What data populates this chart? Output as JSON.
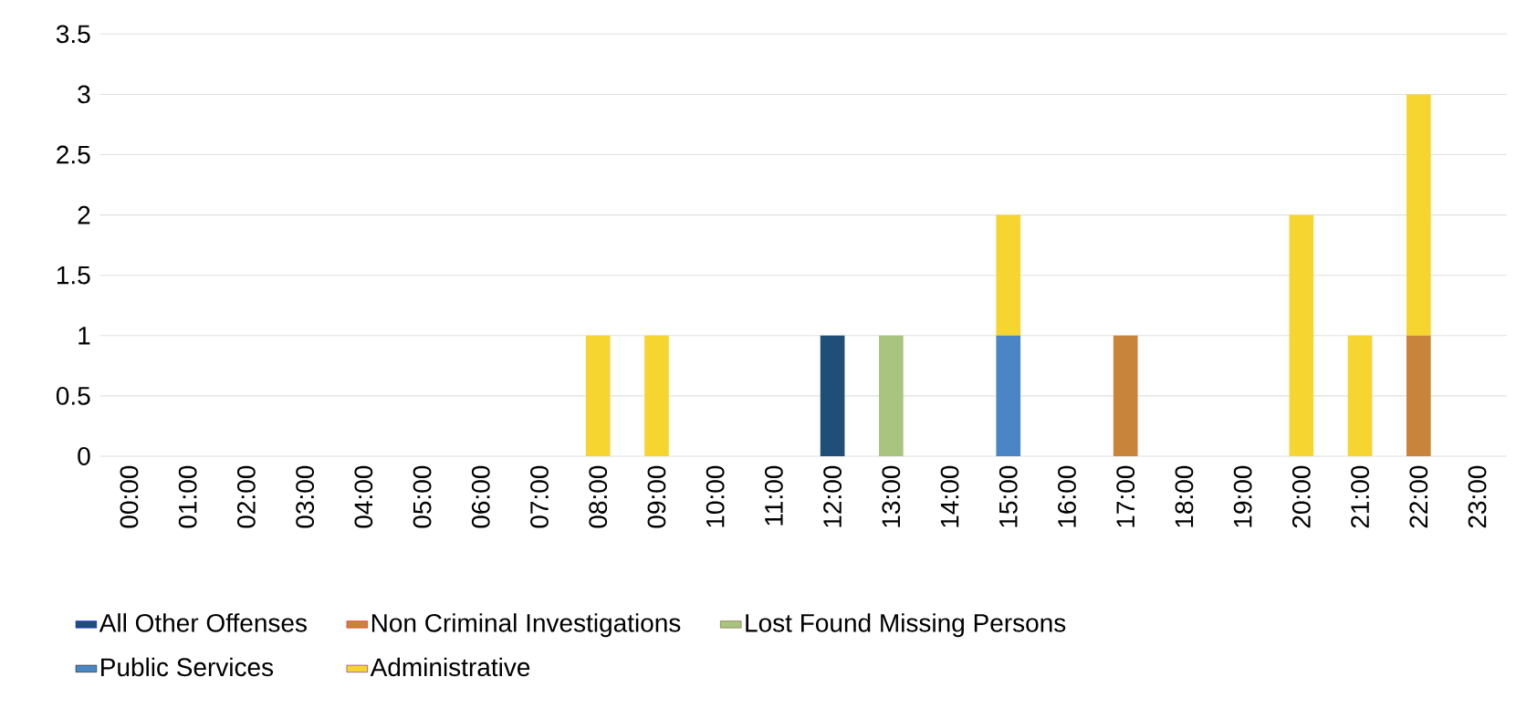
{
  "chart_data": {
    "type": "bar",
    "stacked": true,
    "categories": [
      "00:00",
      "01:00",
      "02:00",
      "03:00",
      "04:00",
      "05:00",
      "06:00",
      "07:00",
      "08:00",
      "09:00",
      "10:00",
      "11:00",
      "12:00",
      "13:00",
      "14:00",
      "15:00",
      "16:00",
      "17:00",
      "18:00",
      "19:00",
      "20:00",
      "21:00",
      "22:00",
      "23:00"
    ],
    "series": [
      {
        "name": "All Other Offenses",
        "color": "#1f4e79",
        "values": [
          0,
          0,
          0,
          0,
          0,
          0,
          0,
          0,
          0,
          0,
          0,
          0,
          1,
          0,
          0,
          0,
          0,
          0,
          0,
          0,
          0,
          0,
          0,
          0
        ]
      },
      {
        "name": "Non Criminal Investigations",
        "color": "#c8843a",
        "values": [
          0,
          0,
          0,
          0,
          0,
          0,
          0,
          0,
          0,
          0,
          0,
          0,
          0,
          0,
          0,
          0,
          0,
          1,
          0,
          0,
          0,
          0,
          1,
          0
        ]
      },
      {
        "name": "Lost Found Missing Persons",
        "color": "#a8c47e",
        "values": [
          0,
          0,
          0,
          0,
          0,
          0,
          0,
          0,
          0,
          0,
          0,
          0,
          0,
          1,
          0,
          0,
          0,
          0,
          0,
          0,
          0,
          0,
          0,
          0
        ]
      },
      {
        "name": "Public Services",
        "color": "#4a86c6",
        "values": [
          0,
          0,
          0,
          0,
          0,
          0,
          0,
          0,
          0,
          0,
          0,
          0,
          0,
          0,
          0,
          1,
          0,
          0,
          0,
          0,
          0,
          0,
          0,
          0
        ]
      },
      {
        "name": "Administrative",
        "color": "#f7d531",
        "values": [
          0,
          0,
          0,
          0,
          0,
          0,
          0,
          0,
          1,
          1,
          0,
          0,
          0,
          0,
          0,
          1,
          0,
          0,
          0,
          0,
          2,
          1,
          2,
          0
        ]
      }
    ],
    "ylim": [
      0,
      3.5
    ],
    "yticks": [
      0,
      0.5,
      1,
      1.5,
      2,
      2.5,
      3,
      3.5
    ],
    "grid": "y",
    "legend": "bottom"
  }
}
